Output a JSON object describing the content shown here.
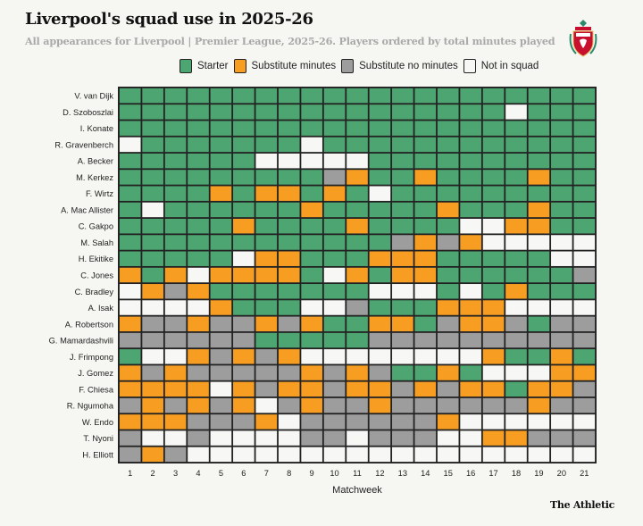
{
  "header": {
    "title": "Liverpool's squad use in 2025-26",
    "subtitle": "All appearances for Liverpool | Premier League, 2025-26. Players ordered by total minutes played"
  },
  "legend": [
    {
      "key": "S",
      "label": "Starter",
      "color": "#4da671"
    },
    {
      "key": "O",
      "label": "Substitute minutes",
      "color": "#f69d22"
    },
    {
      "key": "G",
      "label": "Substitute no minutes",
      "color": "#9d9d9d"
    },
    {
      "key": "N",
      "label": "Not in squad",
      "color": "#f7f7f5"
    }
  ],
  "footer": {
    "brand": "The Athletic"
  },
  "logo": {
    "name": "liverpool-crest-icon",
    "text": "Liverpool Football Club"
  },
  "chart_data": {
    "type": "heatmap",
    "title": "Liverpool's squad use in 2025-26",
    "xlabel": "Matchweek",
    "x": [
      "1",
      "2",
      "3",
      "4",
      "5",
      "6",
      "7",
      "8",
      "9",
      "10",
      "11",
      "12",
      "13",
      "14",
      "15",
      "16",
      "17",
      "18",
      "19",
      "20",
      "21"
    ],
    "legend_placement": "top",
    "codes": {
      "S": "Starter",
      "O": "Substitute minutes",
      "G": "Substitute no minutes",
      "N": "Not in squad"
    },
    "rows": [
      {
        "player": "V. van Dijk",
        "status": "SSSSSSSSSSSSSSSSSSSSS"
      },
      {
        "player": "D. Szoboszlai",
        "status": "SSSSSSSSSSSSSSSSSNSSS"
      },
      {
        "player": "I. Konate",
        "status": "SSSSSSSSSSSSSSSSSSSSS"
      },
      {
        "player": "R. Gravenberch",
        "status": "NSSSSSSSNSSSSSSSSSSSS"
      },
      {
        "player": "A. Becker",
        "status": "SSSSSSNNNNNSSSSSSSSSS"
      },
      {
        "player": "M. Kerkez",
        "status": "SSSSSSSSSGOSSOSSSSOSS"
      },
      {
        "player": "F. Wirtz",
        "status": "SSSSOSOOSOSNSSSSSSSSS"
      },
      {
        "player": "A. Mac Allister",
        "status": "SNSSSSSSOSSSSSOSSSOSS"
      },
      {
        "player": "C. Gakpo",
        "status": "SSSSSOSSSSOSSSSNNOOSS"
      },
      {
        "player": "M. Salah",
        "status": "SSSSSSSSSSSSGOGONNNNN"
      },
      {
        "player": "H. Ekitike",
        "status": "SSSSSNOOSSSOOOSSSSSNN"
      },
      {
        "player": "C. Jones",
        "status": "OSONOOOOSNOSOOSSSSSSG"
      },
      {
        "player": "C. Bradley",
        "status": "NOGOSSSSSSSNNNSNSOSSS"
      },
      {
        "player": "A. Isak",
        "status": "NNNNOSSSNNGSSSOOONNNN"
      },
      {
        "player": "A. Robertson",
        "status": "OGGOGGOGOSSOOSGOOGSGG"
      },
      {
        "player": "G. Mamardashvili",
        "status": "GGGGGGSSSSSGGGGGGGGGG"
      },
      {
        "player": "J. Frimpong",
        "status": "SNNOGOGONNNNNNNNOSSOS"
      },
      {
        "player": "J. Gomez",
        "status": "OGOGGGGGOGOGSSOSNNNOO"
      },
      {
        "player": "F. Chiesa",
        "status": "OOOONOGOOGOOGOGOOSOOG"
      },
      {
        "player": "R. Ngumoha",
        "status": "GOGOGONGOGGOGGGGGGOGG"
      },
      {
        "player": "W. Endo",
        "status": "OOOGGGONGGGGGGONNNNNN"
      },
      {
        "player": "T. Nyoni",
        "status": "GNNGNNNNGGNGGGNNOOGGG"
      },
      {
        "player": "H. Elliott",
        "status": "GOGNNNNNNNNNNNNNNNNNN"
      }
    ]
  }
}
